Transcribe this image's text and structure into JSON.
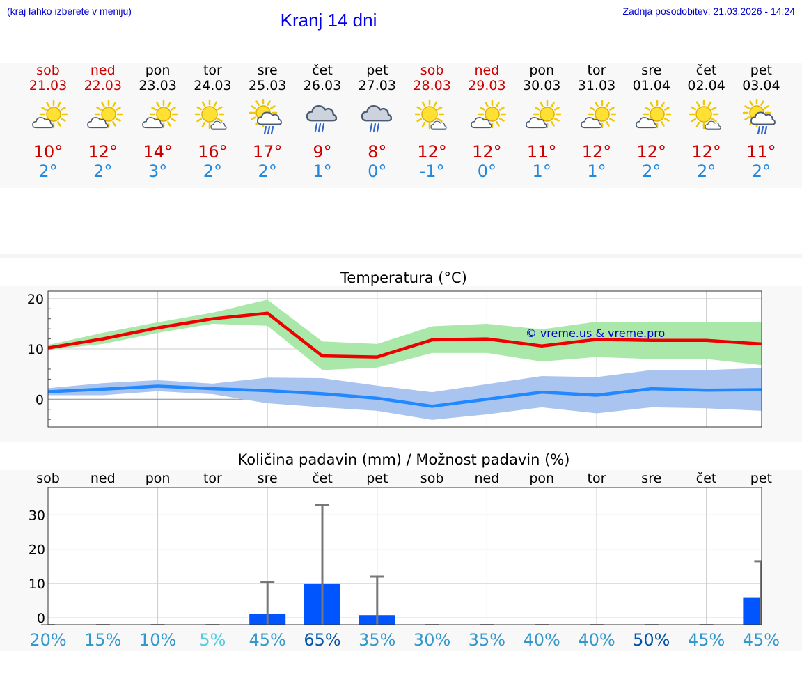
{
  "header": {
    "menu_hint": "(kraj lahko izberete v meniju)",
    "title": "Kranj 14 dni",
    "last_update": "Zadnja posodobitev: 21.03.2026 - 14:24"
  },
  "colors": {
    "weekend": "#cc0000",
    "weekday": "#000000",
    "tmax": "#cc0000",
    "tmin": "#2288dd",
    "max_line": "#ee0000",
    "max_band": "#aae8aa",
    "min_line": "#2288ff",
    "min_band": "#aac4f0",
    "bar": "#0055ff",
    "errbar": "#777777",
    "watermark": "#0000cc"
  },
  "days": [
    {
      "name": "sob",
      "date": "21.03",
      "weekend": true,
      "icon": "partly-cloudy-icon",
      "tmax": "10°",
      "tmin": "2°"
    },
    {
      "name": "ned",
      "date": "22.03",
      "weekend": true,
      "icon": "partly-cloudy-icon",
      "tmax": "12°",
      "tmin": "2°"
    },
    {
      "name": "pon",
      "date": "23.03",
      "weekend": false,
      "icon": "partly-cloudy-icon",
      "tmax": "14°",
      "tmin": "3°"
    },
    {
      "name": "tor",
      "date": "24.03",
      "weekend": false,
      "icon": "mostly-sunny-icon",
      "tmax": "16°",
      "tmin": "2°"
    },
    {
      "name": "sre",
      "date": "25.03",
      "weekend": false,
      "icon": "sun-cloud-rain-icon",
      "tmax": "17°",
      "tmin": "2°"
    },
    {
      "name": "čet",
      "date": "26.03",
      "weekend": false,
      "icon": "cloud-rain-icon",
      "tmax": "9°",
      "tmin": "1°"
    },
    {
      "name": "pet",
      "date": "27.03",
      "weekend": false,
      "icon": "cloud-rain-icon",
      "tmax": "8°",
      "tmin": "0°"
    },
    {
      "name": "sob",
      "date": "28.03",
      "weekend": true,
      "icon": "mostly-sunny-icon",
      "tmax": "12°",
      "tmin": "-1°"
    },
    {
      "name": "ned",
      "date": "29.03",
      "weekend": true,
      "icon": "partly-cloudy-icon",
      "tmax": "12°",
      "tmin": "0°"
    },
    {
      "name": "pon",
      "date": "30.03",
      "weekend": false,
      "icon": "partly-cloudy-icon",
      "tmax": "11°",
      "tmin": "1°"
    },
    {
      "name": "tor",
      "date": "31.03",
      "weekend": false,
      "icon": "partly-cloudy-icon",
      "tmax": "12°",
      "tmin": "1°"
    },
    {
      "name": "sre",
      "date": "01.04",
      "weekend": false,
      "icon": "partly-cloudy-icon",
      "tmax": "12°",
      "tmin": "2°"
    },
    {
      "name": "čet",
      "date": "02.04",
      "weekend": false,
      "icon": "mostly-sunny-icon",
      "tmax": "12°",
      "tmin": "2°"
    },
    {
      "name": "pet",
      "date": "03.04",
      "weekend": false,
      "icon": "sun-cloud-rain-icon",
      "tmax": "11°",
      "tmin": "2°"
    }
  ],
  "chart_data": [
    {
      "type": "line",
      "title": "Temperatura (°C)",
      "xlabel": "",
      "ylabel": "",
      "ylim": [
        -5.5,
        21.5
      ],
      "yticks": [
        0,
        10,
        20
      ],
      "grid": true,
      "watermark": "© vreme.us & vreme.pro",
      "categories": [
        "21.03",
        "22.03",
        "23.03",
        "24.03",
        "25.03",
        "26.03",
        "27.03",
        "28.03",
        "29.03",
        "30.03",
        "31.03",
        "01.04",
        "02.04",
        "03.04"
      ],
      "series": [
        {
          "name": "max",
          "values": [
            10.2,
            12.0,
            14.2,
            16.0,
            17.1,
            8.6,
            8.4,
            11.8,
            12.0,
            10.6,
            11.9,
            11.7,
            11.7,
            11.0
          ],
          "lower": [
            9.8,
            11.0,
            13.2,
            15.0,
            14.6,
            5.8,
            6.3,
            9.2,
            9.2,
            7.5,
            8.4,
            8.0,
            8.0,
            6.8
          ],
          "upper": [
            10.8,
            13.2,
            15.3,
            17.2,
            19.8,
            11.5,
            11.0,
            14.5,
            15.0,
            13.9,
            15.4,
            15.3,
            15.3,
            15.3
          ]
        },
        {
          "name": "min",
          "values": [
            1.5,
            2.0,
            2.6,
            2.1,
            1.7,
            1.1,
            0.2,
            -1.4,
            0.0,
            1.4,
            0.8,
            2.1,
            1.8,
            1.9
          ],
          "lower": [
            0.8,
            0.8,
            1.6,
            1.0,
            -0.8,
            -1.6,
            -2.3,
            -4.1,
            -3.0,
            -1.6,
            -2.8,
            -1.6,
            -1.8,
            -2.3
          ],
          "upper": [
            2.2,
            3.2,
            3.8,
            3.1,
            4.3,
            4.2,
            2.7,
            1.4,
            3.0,
            4.6,
            4.4,
            5.8,
            5.8,
            6.2
          ]
        }
      ]
    },
    {
      "type": "bar",
      "title": "Količina padavin (mm) / Možnost padavin (%)",
      "ylim": [
        -2,
        38
      ],
      "yticks": [
        0,
        10,
        20,
        30
      ],
      "grid": true,
      "categories": [
        "sob",
        "ned",
        "pon",
        "tor",
        "sre",
        "čet",
        "pet",
        "sob",
        "ned",
        "pon",
        "tor",
        "sre",
        "čet",
        "pet"
      ],
      "values": [
        0,
        0,
        0,
        0,
        1.2,
        10.0,
        0.8,
        0,
        0,
        0,
        0,
        0,
        0,
        6.0
      ],
      "error_high": [
        0,
        0,
        0,
        0,
        10.5,
        33.0,
        12.0,
        0,
        0,
        0,
        0,
        0,
        0,
        16.5
      ],
      "probability": [
        "20%",
        "15%",
        "10%",
        "5%",
        "45%",
        "65%",
        "35%",
        "30%",
        "35%",
        "40%",
        "40%",
        "50%",
        "45%",
        "45%"
      ],
      "probability_colors": [
        "#3399cc",
        "#3399cc",
        "#3399cc",
        "#55ccdd",
        "#3399cc",
        "#0055aa",
        "#3399cc",
        "#3399cc",
        "#3399cc",
        "#3399cc",
        "#3399cc",
        "#0055aa",
        "#3399cc",
        "#3399cc"
      ]
    }
  ]
}
